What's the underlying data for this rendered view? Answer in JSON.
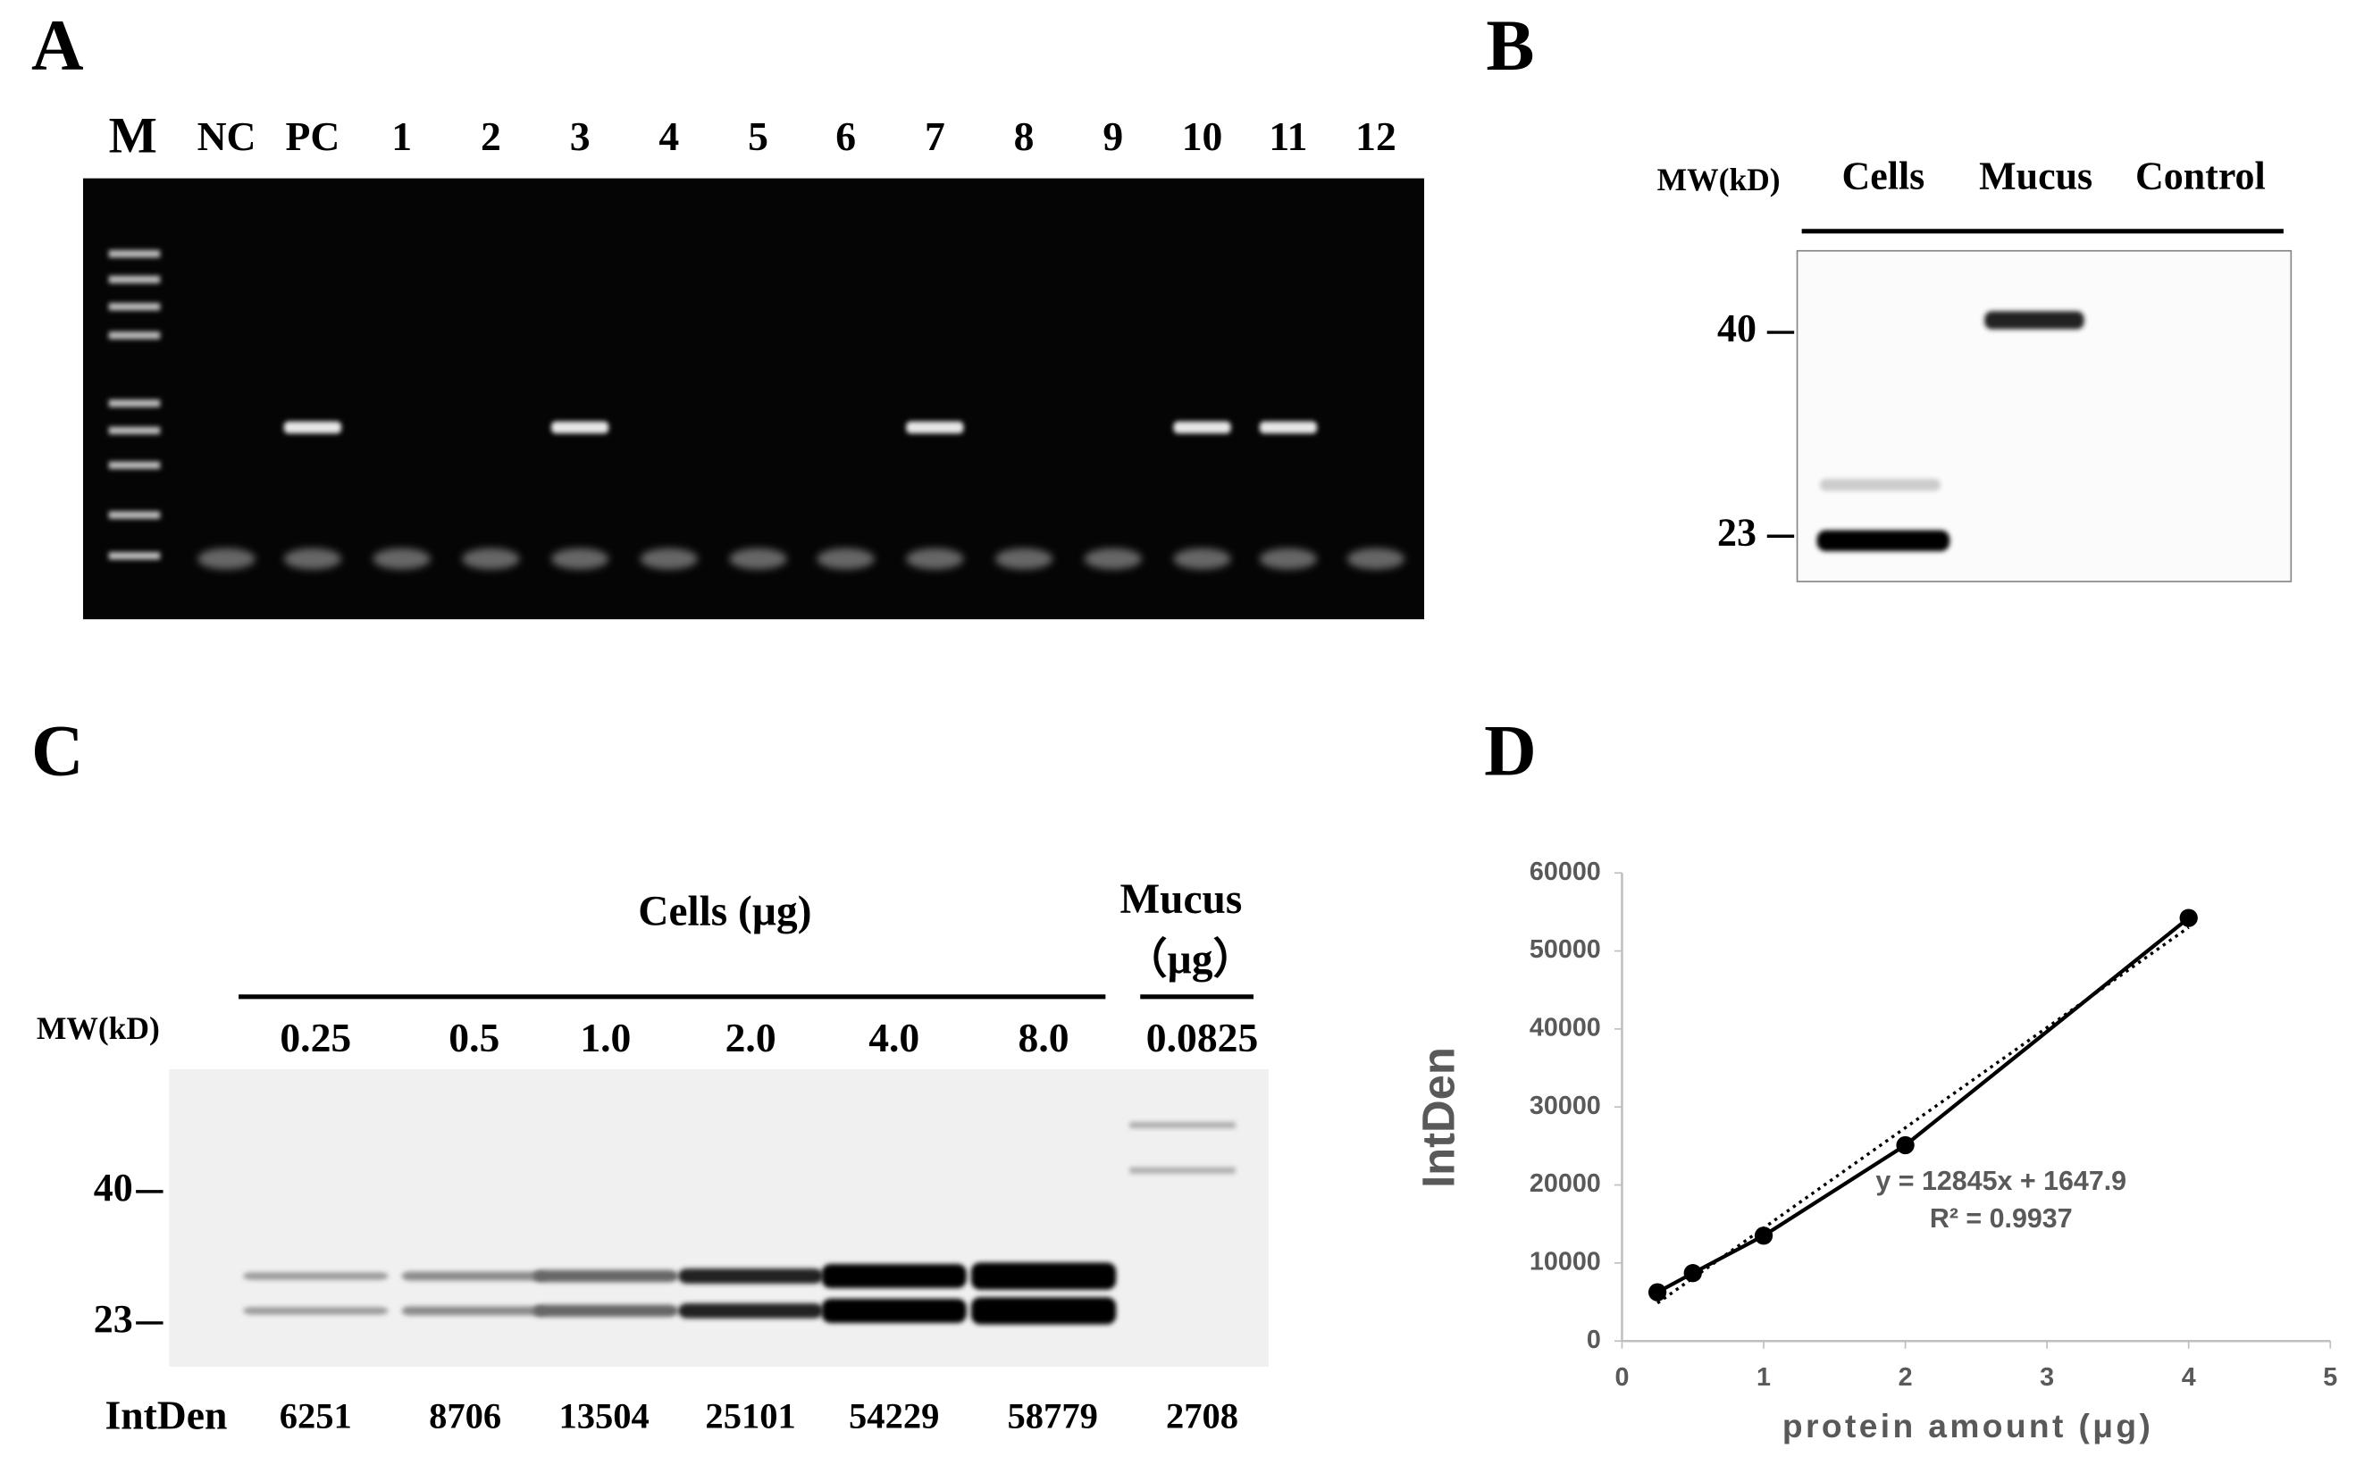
{
  "panel_labels": [
    "A",
    "B",
    "C",
    "D"
  ],
  "gel_a": {
    "lanes": [
      "M",
      "NC",
      "PC",
      "1",
      "2",
      "3",
      "4",
      "5",
      "6",
      "7",
      "8",
      "9",
      "10",
      "11",
      "12"
    ]
  },
  "blot_b": {
    "mw_header": "MW(kD)",
    "lanes": [
      "Cells",
      "Mucus",
      "Control"
    ],
    "markers": [
      "40",
      "23"
    ]
  },
  "blot_c": {
    "group_cells": "Cells (µg)",
    "group_mucus": "Mucus",
    "group_mucus_unit": "（µg）",
    "mw_header": "MW(kD)",
    "amounts": [
      "0.25",
      "0.5",
      "1.0",
      "2.0",
      "4.0",
      "8.0",
      "0.0825"
    ],
    "markers": [
      "40",
      "23"
    ],
    "intden_label": "IntDen",
    "intden_values": [
      6251,
      8706,
      13504,
      25101,
      54229,
      58779,
      2708
    ]
  },
  "chart_data": {
    "type": "line",
    "x": [
      0.25,
      0.5,
      1,
      2,
      4
    ],
    "values": [
      6251,
      8706,
      13504,
      25101,
      54229
    ],
    "color": "#000000",
    "xlabel": "protein amount (μg)",
    "ylabel": "IntDen",
    "xlim": [
      0,
      5
    ],
    "xticks": [
      0,
      1,
      2,
      3,
      4,
      5
    ],
    "ylim": [
      0,
      60000
    ],
    "yticks": [
      0,
      10000,
      20000,
      30000,
      40000,
      50000,
      60000
    ],
    "trendline": {
      "label": "y = 12845x + 1647.9",
      "r2_label": "R² = 0.9937",
      "slope": 12845,
      "intercept": 1647.9
    }
  }
}
